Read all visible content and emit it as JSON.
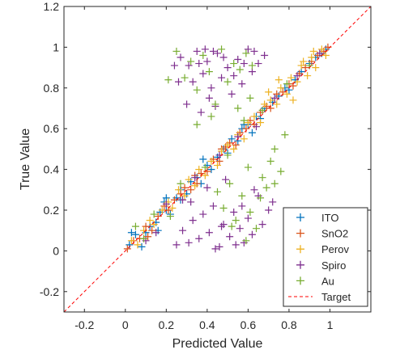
{
  "chart_data": {
    "type": "scatter",
    "title": "",
    "xlabel": "Predicted Value",
    "ylabel": "True Value",
    "xlim": [
      -0.3,
      1.2
    ],
    "ylim": [
      -0.3,
      1.2
    ],
    "xticks": [
      -0.2,
      0,
      0.2,
      0.4,
      0.6,
      0.8,
      1
    ],
    "xtick_labels": [
      "-0.2",
      "0",
      "0.2",
      "0.4",
      "0.6",
      "0.8",
      "1"
    ],
    "yticks": [
      -0.2,
      0,
      0.2,
      0.4,
      0.6,
      0.8,
      1,
      1.2
    ],
    "ytick_labels": [
      "-0.2",
      "0",
      "0.2",
      "0.4",
      "0.6",
      "0.8",
      "1",
      "1.2"
    ],
    "grid": false,
    "legend_position": "bottom-right",
    "marker": "+",
    "series": [
      {
        "name": "ITO",
        "color": "#0072BD",
        "points": [
          [
            0.02,
            0.03
          ],
          [
            0.05,
            0.08
          ],
          [
            0.08,
            0.02
          ],
          [
            0.1,
            0.09
          ],
          [
            0.12,
            0.12
          ],
          [
            0.15,
            0.14
          ],
          [
            0.17,
            0.19
          ],
          [
            0.2,
            0.2
          ],
          [
            0.22,
            0.18
          ],
          [
            0.25,
            0.26
          ],
          [
            0.27,
            0.3
          ],
          [
            0.3,
            0.28
          ],
          [
            0.32,
            0.34
          ],
          [
            0.35,
            0.36
          ],
          [
            0.37,
            0.33
          ],
          [
            0.4,
            0.42
          ],
          [
            0.42,
            0.4
          ],
          [
            0.45,
            0.46
          ],
          [
            0.48,
            0.5
          ],
          [
            0.5,
            0.48
          ],
          [
            0.52,
            0.55
          ],
          [
            0.55,
            0.54
          ],
          [
            0.57,
            0.6
          ],
          [
            0.6,
            0.62
          ],
          [
            0.62,
            0.58
          ],
          [
            0.64,
            0.66
          ],
          [
            0.66,
            0.65
          ],
          [
            0.68,
            0.7
          ],
          [
            0.72,
            0.73
          ],
          [
            0.75,
            0.76
          ],
          [
            0.78,
            0.8
          ],
          [
            0.8,
            0.79
          ],
          [
            0.83,
            0.84
          ],
          [
            0.86,
            0.88
          ],
          [
            0.9,
            0.92
          ],
          [
            0.93,
            0.95
          ],
          [
            0.96,
            0.97
          ],
          [
            0.98,
            0.99
          ],
          [
            0.19,
            0.24
          ],
          [
            0.38,
            0.45
          ],
          [
            0.16,
            0.1
          ],
          [
            0.03,
            0.09
          ],
          [
            0.2,
            0.26
          ],
          [
            0.58,
            0.62
          ],
          [
            0.27,
            0.25
          ]
        ]
      },
      {
        "name": "SnO2",
        "color": "#D95319",
        "points": [
          [
            0.01,
            0.01
          ],
          [
            0.04,
            0.05
          ],
          [
            0.07,
            0.06
          ],
          [
            0.1,
            0.12
          ],
          [
            0.13,
            0.1
          ],
          [
            0.16,
            0.17
          ],
          [
            0.19,
            0.22
          ],
          [
            0.21,
            0.2
          ],
          [
            0.24,
            0.25
          ],
          [
            0.27,
            0.28
          ],
          [
            0.29,
            0.31
          ],
          [
            0.32,
            0.3
          ],
          [
            0.34,
            0.37
          ],
          [
            0.37,
            0.38
          ],
          [
            0.4,
            0.39
          ],
          [
            0.43,
            0.45
          ],
          [
            0.46,
            0.44
          ],
          [
            0.49,
            0.51
          ],
          [
            0.51,
            0.53
          ],
          [
            0.54,
            0.52
          ],
          [
            0.56,
            0.58
          ],
          [
            0.59,
            0.6
          ],
          [
            0.61,
            0.64
          ],
          [
            0.63,
            0.62
          ],
          [
            0.66,
            0.68
          ],
          [
            0.69,
            0.71
          ],
          [
            0.71,
            0.7
          ],
          [
            0.74,
            0.77
          ],
          [
            0.77,
            0.78
          ],
          [
            0.8,
            0.82
          ],
          [
            0.82,
            0.81
          ],
          [
            0.85,
            0.87
          ],
          [
            0.88,
            0.9
          ],
          [
            0.91,
            0.93
          ],
          [
            0.94,
            0.96
          ],
          [
            0.97,
            0.98
          ],
          [
            0.99,
            1.0
          ],
          [
            0.47,
            0.5
          ],
          [
            0.35,
            0.33
          ],
          [
            0.11,
            0.07
          ]
        ]
      },
      {
        "name": "Perov",
        "color": "#EDB120",
        "points": [
          [
            0.03,
            0.05
          ],
          [
            0.06,
            0.03
          ],
          [
            0.09,
            0.1
          ],
          [
            0.12,
            0.15
          ],
          [
            0.14,
            0.13
          ],
          [
            0.18,
            0.2
          ],
          [
            0.21,
            0.24
          ],
          [
            0.23,
            0.21
          ],
          [
            0.26,
            0.3
          ],
          [
            0.29,
            0.27
          ],
          [
            0.31,
            0.35
          ],
          [
            0.34,
            0.32
          ],
          [
            0.36,
            0.4
          ],
          [
            0.39,
            0.37
          ],
          [
            0.42,
            0.44
          ],
          [
            0.45,
            0.42
          ],
          [
            0.47,
            0.49
          ],
          [
            0.5,
            0.52
          ],
          [
            0.53,
            0.5
          ],
          [
            0.55,
            0.57
          ],
          [
            0.58,
            0.55
          ],
          [
            0.6,
            0.63
          ],
          [
            0.63,
            0.66
          ],
          [
            0.66,
            0.63
          ],
          [
            0.68,
            0.72
          ],
          [
            0.71,
            0.74
          ],
          [
            0.74,
            0.72
          ],
          [
            0.76,
            0.8
          ],
          [
            0.79,
            0.77
          ],
          [
            0.81,
            0.85
          ],
          [
            0.84,
            0.83
          ],
          [
            0.86,
            0.91
          ],
          [
            0.89,
            0.86
          ],
          [
            0.91,
            0.95
          ],
          [
            0.93,
            0.9
          ],
          [
            0.96,
            0.99
          ],
          [
            0.98,
            0.96
          ],
          [
            0.7,
            0.78
          ],
          [
            0.87,
            0.93
          ],
          [
            0.82,
            0.74
          ],
          [
            0.92,
            0.98
          ],
          [
            0.75,
            0.84
          ]
        ]
      },
      {
        "name": "Spiro",
        "color": "#7E2F8E",
        "points": [
          [
            0.27,
            0.95
          ],
          [
            0.31,
            0.91
          ],
          [
            0.35,
            0.98
          ],
          [
            0.38,
            0.87
          ],
          [
            0.4,
            0.93
          ],
          [
            0.42,
            0.8
          ],
          [
            0.45,
            0.97
          ],
          [
            0.47,
            0.85
          ],
          [
            0.5,
            0.9
          ],
          [
            0.52,
            0.77
          ],
          [
            0.55,
            0.94
          ],
          [
            0.57,
            0.82
          ],
          [
            0.6,
            0.99
          ],
          [
            0.62,
            0.88
          ],
          [
            0.65,
            0.92
          ],
          [
            0.68,
            0.96
          ],
          [
            0.3,
            0.72
          ],
          [
            0.33,
            0.83
          ],
          [
            0.37,
            0.68
          ],
          [
            0.41,
            0.75
          ],
          [
            0.24,
            0.91
          ],
          [
            0.26,
            0.83
          ],
          [
            0.39,
            0.99
          ],
          [
            0.44,
            0.71
          ],
          [
            0.48,
            0.95
          ],
          [
            0.63,
            0.98
          ],
          [
            0.58,
            0.92
          ],
          [
            0.36,
            0.92
          ],
          [
            0.43,
            0.98
          ],
          [
            0.53,
            0.86
          ],
          [
            0.25,
            0.03
          ],
          [
            0.28,
            0.1
          ],
          [
            0.31,
            0.04
          ],
          [
            0.33,
            0.15
          ],
          [
            0.36,
            0.06
          ],
          [
            0.38,
            0.18
          ],
          [
            0.41,
            0.09
          ],
          [
            0.43,
            0.22
          ],
          [
            0.46,
            0.02
          ],
          [
            0.48,
            0.13
          ],
          [
            0.51,
            0.07
          ],
          [
            0.53,
            0.19
          ],
          [
            0.56,
            0.11
          ],
          [
            0.58,
            0.04
          ],
          [
            0.6,
            0.16
          ],
          [
            0.62,
            0.08
          ],
          [
            0.65,
            0.27
          ],
          [
            0.67,
            0.13
          ],
          [
            0.7,
            0.2
          ],
          [
            0.72,
            0.24
          ],
          [
            0.47,
            0.12
          ],
          [
            0.44,
            0.01
          ],
          [
            0.4,
            0.31
          ],
          [
            0.57,
            0.22
          ],
          [
            0.32,
            0.24
          ],
          [
            0.54,
            0.03
          ],
          [
            0.49,
            0.35
          ],
          [
            0.63,
            0.3
          ],
          [
            0.1,
            0.05
          ],
          [
            0.15,
            0.09
          ],
          [
            0.2,
            0.23
          ],
          [
            0.28,
            0.25
          ],
          [
            0.34,
            0.36
          ],
          [
            0.46,
            0.47
          ],
          [
            0.55,
            0.56
          ],
          [
            0.64,
            0.61
          ],
          [
            0.73,
            0.75
          ],
          [
            0.84,
            0.86
          ],
          [
            0.95,
            0.97
          ]
        ]
      },
      {
        "name": "Au",
        "color": "#77AC30",
        "points": [
          [
            0.25,
            0.98
          ],
          [
            0.29,
            0.85
          ],
          [
            0.32,
            0.93
          ],
          [
            0.35,
            0.79
          ],
          [
            0.38,
            0.96
          ],
          [
            0.41,
            0.88
          ],
          [
            0.44,
            0.72
          ],
          [
            0.47,
            0.99
          ],
          [
            0.5,
            0.83
          ],
          [
            0.53,
            0.92
          ],
          [
            0.56,
            0.89
          ],
          [
            0.59,
            0.97
          ],
          [
            0.62,
            0.91
          ],
          [
            0.21,
            0.84
          ],
          [
            0.35,
            0.62
          ],
          [
            0.42,
            0.66
          ],
          [
            0.55,
            0.7
          ],
          [
            0.61,
            0.75
          ],
          [
            0.45,
            0.29
          ],
          [
            0.48,
            0.21
          ],
          [
            0.51,
            0.33
          ],
          [
            0.54,
            0.15
          ],
          [
            0.57,
            0.27
          ],
          [
            0.59,
            0.05
          ],
          [
            0.61,
            0.19
          ],
          [
            0.64,
            0.11
          ],
          [
            0.67,
            0.36
          ],
          [
            0.69,
            0.31
          ],
          [
            0.71,
            0.44
          ],
          [
            0.73,
            0.5
          ],
          [
            0.76,
            0.39
          ],
          [
            0.78,
            0.57
          ],
          [
            0.73,
            0.33
          ],
          [
            0.6,
            0.41
          ],
          [
            0.52,
            0.12
          ],
          [
            0.66,
            0.26
          ],
          [
            0.05,
            0.12
          ],
          [
            0.09,
            0.06
          ],
          [
            0.14,
            0.18
          ],
          [
            0.22,
            0.17
          ],
          [
            0.27,
            0.33
          ],
          [
            0.39,
            0.41
          ],
          [
            0.5,
            0.47
          ],
          [
            0.58,
            0.64
          ],
          [
            0.67,
            0.69
          ],
          [
            0.79,
            0.82
          ],
          [
            0.9,
            0.91
          ]
        ]
      }
    ],
    "reference_line": {
      "name": "Target",
      "color": "#FF0000",
      "style": "dashed",
      "points": [
        [
          -0.3,
          -0.3
        ],
        [
          1.2,
          1.2
        ]
      ]
    }
  }
}
